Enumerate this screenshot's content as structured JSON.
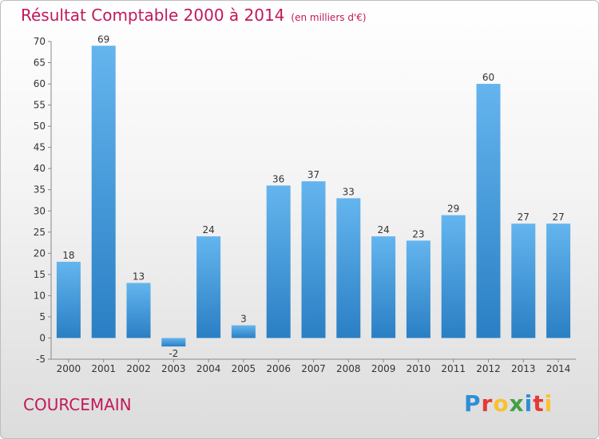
{
  "title": "Résultat Comptable 2000 à 2014",
  "unit": "(en milliers d'€)",
  "commune": "COURCEMAIN",
  "logo": {
    "text": "Proxiti",
    "letters": [
      {
        "char": "P",
        "color": "#2e8fd6"
      },
      {
        "char": "r",
        "color": "#e53935"
      },
      {
        "char": "o",
        "color": "#fbc02d"
      },
      {
        "char": "x",
        "color": "#43a047"
      },
      {
        "char": "i",
        "color": "#2e8fd6"
      },
      {
        "char": "t",
        "color": "#e53935"
      },
      {
        "char": "i",
        "color": "#fbc02d"
      }
    ]
  },
  "colors": {
    "accent": "#c2185b",
    "bar_light": "#64b5ee",
    "bar_dark": "#2a7fc4"
  },
  "chart_data": {
    "type": "bar",
    "title": "Résultat Comptable 2000 à 2014",
    "ylabel": "",
    "xlabel": "",
    "categories": [
      "2000",
      "2001",
      "2002",
      "2003",
      "2004",
      "2005",
      "2006",
      "2007",
      "2008",
      "2009",
      "2010",
      "2011",
      "2012",
      "2013",
      "2014"
    ],
    "values": [
      18,
      69,
      13,
      -2,
      24,
      3,
      36,
      37,
      33,
      24,
      23,
      29,
      60,
      27,
      27
    ],
    "ylim": [
      -5,
      70
    ],
    "yticks": [
      -5,
      0,
      5,
      10,
      15,
      20,
      25,
      30,
      35,
      40,
      45,
      50,
      55,
      60,
      65,
      70
    ],
    "grid": false,
    "legend": "none"
  }
}
